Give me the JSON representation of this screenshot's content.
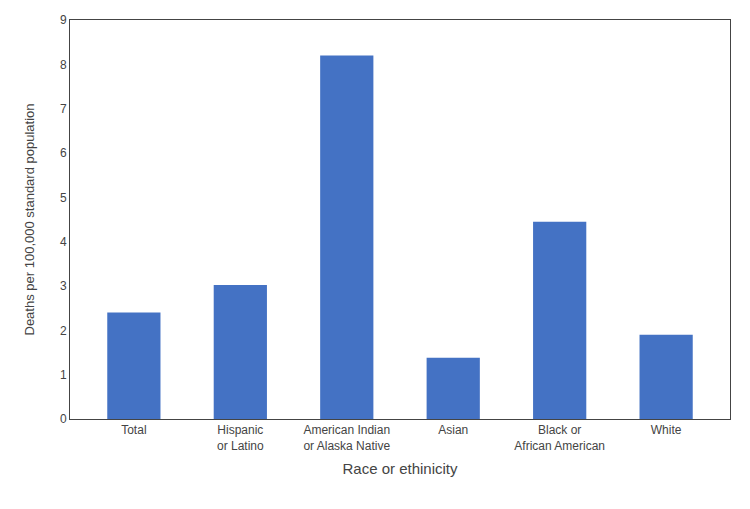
{
  "chart_data": {
    "type": "bar",
    "categories": [
      "Total",
      "Hispanic\nor Latino",
      "American Indian\nor Alaska Native",
      "Asian",
      "Black or\nAfrican American",
      "White"
    ],
    "values": [
      2.4,
      3.02,
      8.2,
      1.38,
      4.45,
      1.9
    ],
    "color": "#4472C4",
    "xlabel": "Race or ethinicity",
    "ylabel": "Deaths per 100,000 standard population",
    "ylim": [
      0,
      9
    ],
    "yticks": [
      0,
      1,
      2,
      3,
      4,
      5,
      6,
      7,
      8,
      9
    ],
    "grid": false
  }
}
